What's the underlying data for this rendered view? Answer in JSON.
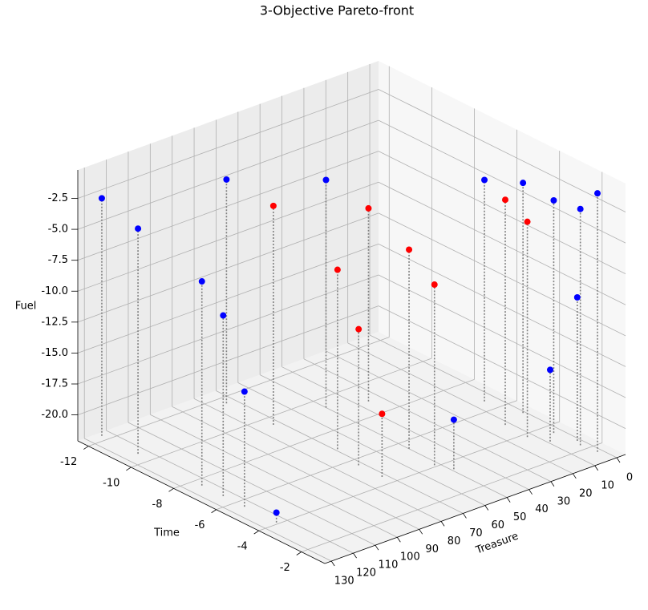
{
  "chart_data": {
    "type": "scatter3d",
    "title": "3-Objective Pareto-front",
    "x_label": "Treasure",
    "y_label": "Time",
    "z_label": "Fuel",
    "xlim": [
      -4,
      133
    ],
    "ylim": [
      -12.5,
      -0.9
    ],
    "zlim": [
      -22.1,
      -0.2
    ],
    "xticks": [
      0,
      10,
      20,
      30,
      40,
      50,
      60,
      70,
      80,
      90,
      100,
      110,
      120,
      130
    ],
    "yticks": [
      -12,
      -10,
      -8,
      -6,
      -4,
      -2
    ],
    "zticks": [
      {
        "value": -20,
        "label": "-20.0"
      },
      -17.5,
      {
        "value": -15,
        "label": "-15.0"
      },
      -12.5,
      {
        "value": -10,
        "label": "-10.0"
      },
      -7.5,
      {
        "value": -5,
        "label": "-5.0"
      },
      -2.5
    ],
    "grid": true,
    "series": [
      {
        "color": "#0000ff",
        "x": [
          124,
          124,
          124,
          124,
          124,
          124,
          74,
          50,
          5,
          1,
          9,
          3.5,
          1.5,
          3,
          2,
          49
        ],
        "y": [
          -12.3,
          -10.6,
          -7.6,
          -6.6,
          -5.6,
          -4.1,
          -11.6,
          -9.4,
          -6.6,
          -5.2,
          -3.1,
          -3.5,
          -2.6,
          -2.3,
          -1.6,
          -3.5
        ],
        "z": [
          -2.9,
          -3.9,
          -5.6,
          -7.5,
          -12.8,
          -21.3,
          -4,
          -3.7,
          -4.2,
          -3.5,
          -16.3,
          -3.3,
          -10.5,
          -3,
          -1.2,
          -18.1
        ]
      },
      {
        "color": "#ff0000",
        "x": [
          73,
          69,
          72,
          35.5,
          72,
          50,
          52,
          12,
          12.6
        ],
        "y": [
          -9.5,
          -6.9,
          -5.6,
          -8.9,
          -4.5,
          -5.5,
          -4.1,
          -4.9,
          -3.8
        ],
        "z": [
          -4.4,
          -7.6,
          -11.1,
          -6.5,
          -17,
          -6,
          -7.5,
          -3.9,
          -4.7
        ]
      }
    ]
  }
}
